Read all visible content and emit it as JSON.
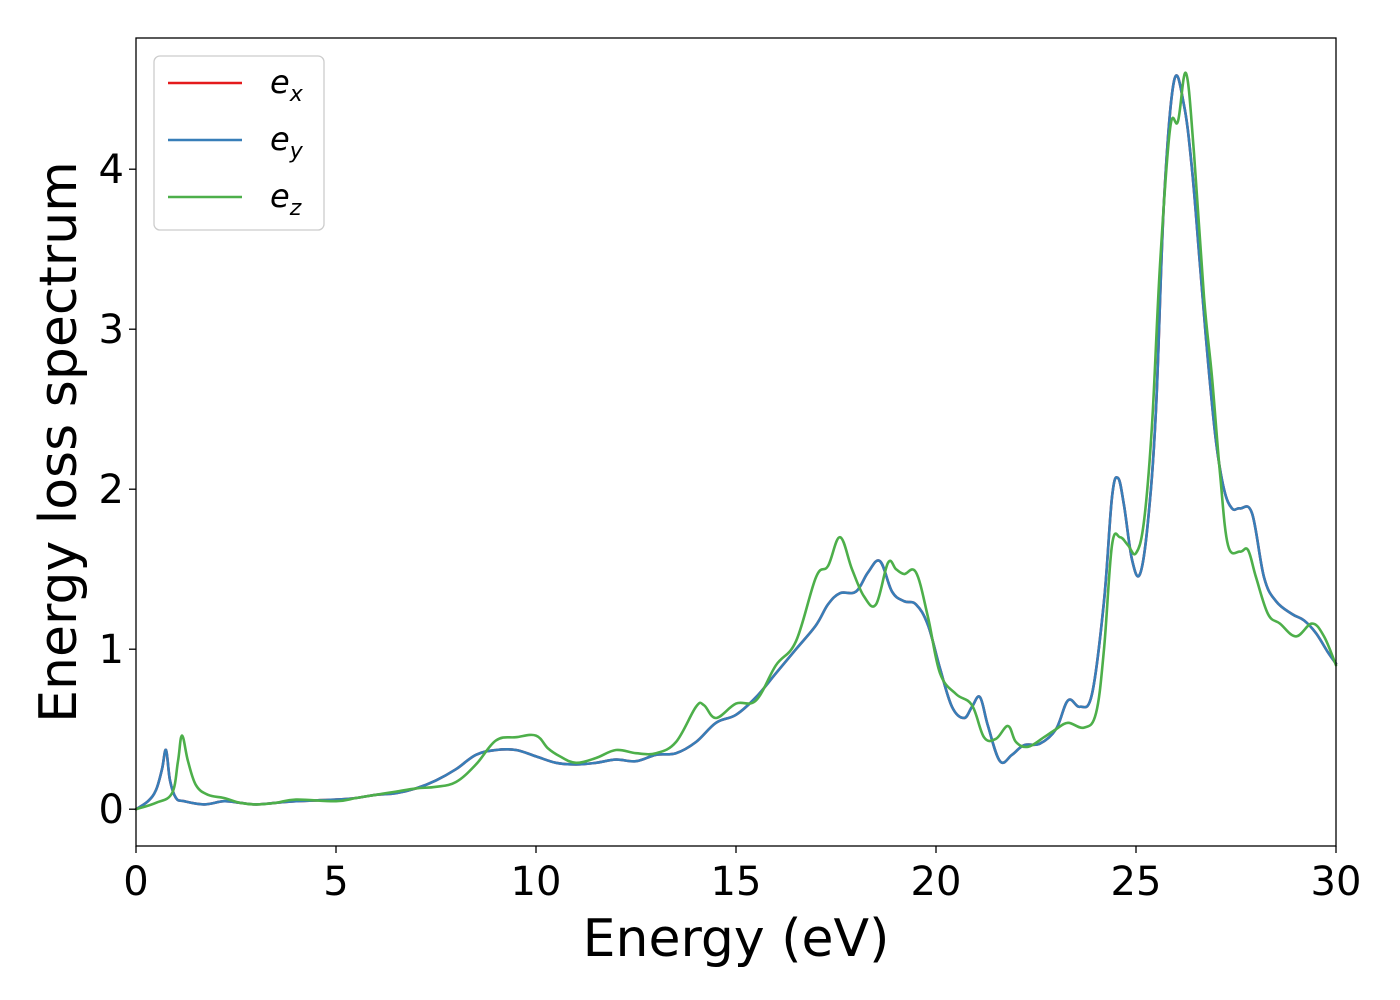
{
  "chart_data": {
    "type": "line",
    "xlabel": "Energy (eV)",
    "ylabel": "Energy loss spectrum",
    "xlim": [
      0,
      30
    ],
    "ylim": [
      -0.23,
      4.82
    ],
    "xticks": [
      0,
      5,
      10,
      15,
      20,
      25,
      30
    ],
    "yticks": [
      0,
      1,
      2,
      3,
      4
    ],
    "grid": false,
    "legend_position": "top-left",
    "series": [
      {
        "name": "e_x",
        "legend_base": "e",
        "legend_sub": "x",
        "color": "#e41a1c",
        "x": [
          0,
          0.3,
          0.5,
          0.65,
          0.75,
          0.85,
          1.0,
          1.2,
          1.7,
          2.2,
          2.6,
          3.0,
          3.5,
          4.0,
          5.0,
          5.5,
          6.0,
          6.5,
          7.0,
          7.5,
          8.0,
          8.5,
          9.0,
          9.5,
          10.0,
          10.5,
          11.0,
          11.5,
          12.0,
          12.5,
          13.0,
          13.5,
          14.0,
          14.5,
          15.0,
          15.5,
          16.0,
          16.5,
          17.0,
          17.3,
          17.6,
          18.0,
          18.3,
          18.6,
          18.9,
          19.2,
          19.5,
          19.8,
          20.1,
          20.4,
          20.7,
          20.9,
          21.1,
          21.3,
          21.6,
          21.9,
          22.2,
          22.6,
          23.0,
          23.3,
          23.6,
          23.9,
          24.2,
          24.4,
          24.55,
          24.7,
          24.9,
          25.1,
          25.3,
          25.5,
          25.7,
          25.95,
          26.2,
          26.4,
          26.6,
          26.8,
          27.0,
          27.2,
          27.4,
          27.6,
          27.9,
          28.2,
          28.5,
          28.9,
          29.2,
          29.5,
          29.8,
          30.0
        ],
        "values": [
          0.0,
          0.05,
          0.12,
          0.25,
          0.37,
          0.18,
          0.07,
          0.05,
          0.03,
          0.05,
          0.04,
          0.03,
          0.04,
          0.05,
          0.06,
          0.07,
          0.09,
          0.1,
          0.13,
          0.18,
          0.25,
          0.34,
          0.37,
          0.37,
          0.33,
          0.29,
          0.28,
          0.29,
          0.31,
          0.3,
          0.34,
          0.35,
          0.42,
          0.54,
          0.59,
          0.7,
          0.85,
          1.0,
          1.15,
          1.28,
          1.35,
          1.36,
          1.48,
          1.55,
          1.36,
          1.3,
          1.28,
          1.15,
          0.88,
          0.64,
          0.57,
          0.64,
          0.7,
          0.52,
          0.3,
          0.34,
          0.4,
          0.41,
          0.5,
          0.68,
          0.64,
          0.72,
          1.3,
          1.95,
          2.07,
          1.9,
          1.56,
          1.47,
          1.8,
          2.5,
          3.8,
          4.55,
          4.4,
          4.0,
          3.4,
          2.8,
          2.3,
          2.0,
          1.88,
          1.88,
          1.85,
          1.45,
          1.3,
          1.22,
          1.18,
          1.1,
          0.98,
          0.91
        ]
      },
      {
        "name": "e_y",
        "legend_base": "e",
        "legend_sub": "y",
        "color": "#377eb8",
        "x": [
          0,
          0.3,
          0.5,
          0.65,
          0.75,
          0.85,
          1.0,
          1.2,
          1.7,
          2.2,
          2.6,
          3.0,
          3.5,
          4.0,
          5.0,
          5.5,
          6.0,
          6.5,
          7.0,
          7.5,
          8.0,
          8.5,
          9.0,
          9.5,
          10.0,
          10.5,
          11.0,
          11.5,
          12.0,
          12.5,
          13.0,
          13.5,
          14.0,
          14.5,
          15.0,
          15.5,
          16.0,
          16.5,
          17.0,
          17.3,
          17.6,
          18.0,
          18.3,
          18.6,
          18.9,
          19.2,
          19.5,
          19.8,
          20.1,
          20.4,
          20.7,
          20.9,
          21.1,
          21.3,
          21.6,
          21.9,
          22.2,
          22.6,
          23.0,
          23.3,
          23.6,
          23.9,
          24.2,
          24.4,
          24.55,
          24.7,
          24.9,
          25.1,
          25.3,
          25.5,
          25.7,
          25.95,
          26.2,
          26.4,
          26.6,
          26.8,
          27.0,
          27.2,
          27.4,
          27.6,
          27.9,
          28.2,
          28.5,
          28.9,
          29.2,
          29.5,
          29.8,
          30.0
        ],
        "values": [
          0.0,
          0.05,
          0.12,
          0.25,
          0.37,
          0.18,
          0.07,
          0.05,
          0.03,
          0.05,
          0.04,
          0.03,
          0.04,
          0.05,
          0.06,
          0.07,
          0.09,
          0.1,
          0.13,
          0.18,
          0.25,
          0.34,
          0.37,
          0.37,
          0.33,
          0.29,
          0.28,
          0.29,
          0.31,
          0.3,
          0.34,
          0.35,
          0.42,
          0.54,
          0.59,
          0.7,
          0.85,
          1.0,
          1.15,
          1.28,
          1.35,
          1.36,
          1.48,
          1.55,
          1.36,
          1.3,
          1.28,
          1.15,
          0.88,
          0.64,
          0.57,
          0.64,
          0.7,
          0.52,
          0.3,
          0.34,
          0.4,
          0.41,
          0.5,
          0.68,
          0.64,
          0.72,
          1.3,
          1.95,
          2.07,
          1.9,
          1.56,
          1.47,
          1.8,
          2.5,
          3.8,
          4.55,
          4.4,
          4.0,
          3.4,
          2.8,
          2.3,
          2.0,
          1.88,
          1.88,
          1.85,
          1.45,
          1.3,
          1.22,
          1.18,
          1.1,
          0.98,
          0.91
        ]
      },
      {
        "name": "e_z",
        "legend_base": "e",
        "legend_sub": "z",
        "color": "#4daf4a",
        "x": [
          0,
          0.5,
          0.9,
          1.05,
          1.15,
          1.3,
          1.5,
          1.8,
          2.2,
          2.6,
          3.0,
          3.5,
          4.0,
          5.0,
          5.5,
          6.0,
          6.5,
          7.0,
          7.5,
          8.0,
          8.5,
          9.0,
          9.5,
          10.0,
          10.3,
          10.6,
          11.0,
          11.5,
          12.0,
          12.5,
          13.0,
          13.5,
          14.0,
          14.2,
          14.5,
          15.0,
          15.5,
          16.0,
          16.5,
          17.0,
          17.3,
          17.6,
          17.9,
          18.2,
          18.5,
          18.8,
          19.0,
          19.2,
          19.5,
          19.8,
          20.1,
          20.5,
          20.9,
          21.2,
          21.5,
          21.8,
          22.0,
          22.3,
          22.7,
          23.0,
          23.3,
          23.7,
          24.0,
          24.2,
          24.4,
          24.6,
          24.8,
          25.0,
          25.2,
          25.4,
          25.6,
          25.85,
          26.05,
          26.25,
          26.45,
          26.7,
          26.9,
          27.1,
          27.3,
          27.6,
          27.8,
          28.0,
          28.3,
          28.6,
          29.0,
          29.4,
          29.7,
          30.0
        ],
        "values": [
          0.0,
          0.04,
          0.1,
          0.3,
          0.46,
          0.3,
          0.15,
          0.09,
          0.07,
          0.04,
          0.03,
          0.04,
          0.06,
          0.05,
          0.07,
          0.09,
          0.11,
          0.13,
          0.14,
          0.17,
          0.28,
          0.43,
          0.45,
          0.46,
          0.38,
          0.33,
          0.29,
          0.32,
          0.37,
          0.35,
          0.35,
          0.42,
          0.64,
          0.65,
          0.57,
          0.66,
          0.68,
          0.9,
          1.05,
          1.45,
          1.52,
          1.7,
          1.5,
          1.33,
          1.28,
          1.54,
          1.5,
          1.47,
          1.48,
          1.2,
          0.85,
          0.72,
          0.65,
          0.45,
          0.44,
          0.52,
          0.42,
          0.39,
          0.45,
          0.5,
          0.54,
          0.51,
          0.6,
          1.0,
          1.65,
          1.7,
          1.65,
          1.6,
          1.8,
          2.4,
          3.4,
          4.25,
          4.3,
          4.6,
          4.1,
          3.2,
          2.7,
          2.1,
          1.65,
          1.61,
          1.62,
          1.45,
          1.22,
          1.16,
          1.08,
          1.16,
          1.08,
          0.9
        ]
      }
    ]
  }
}
